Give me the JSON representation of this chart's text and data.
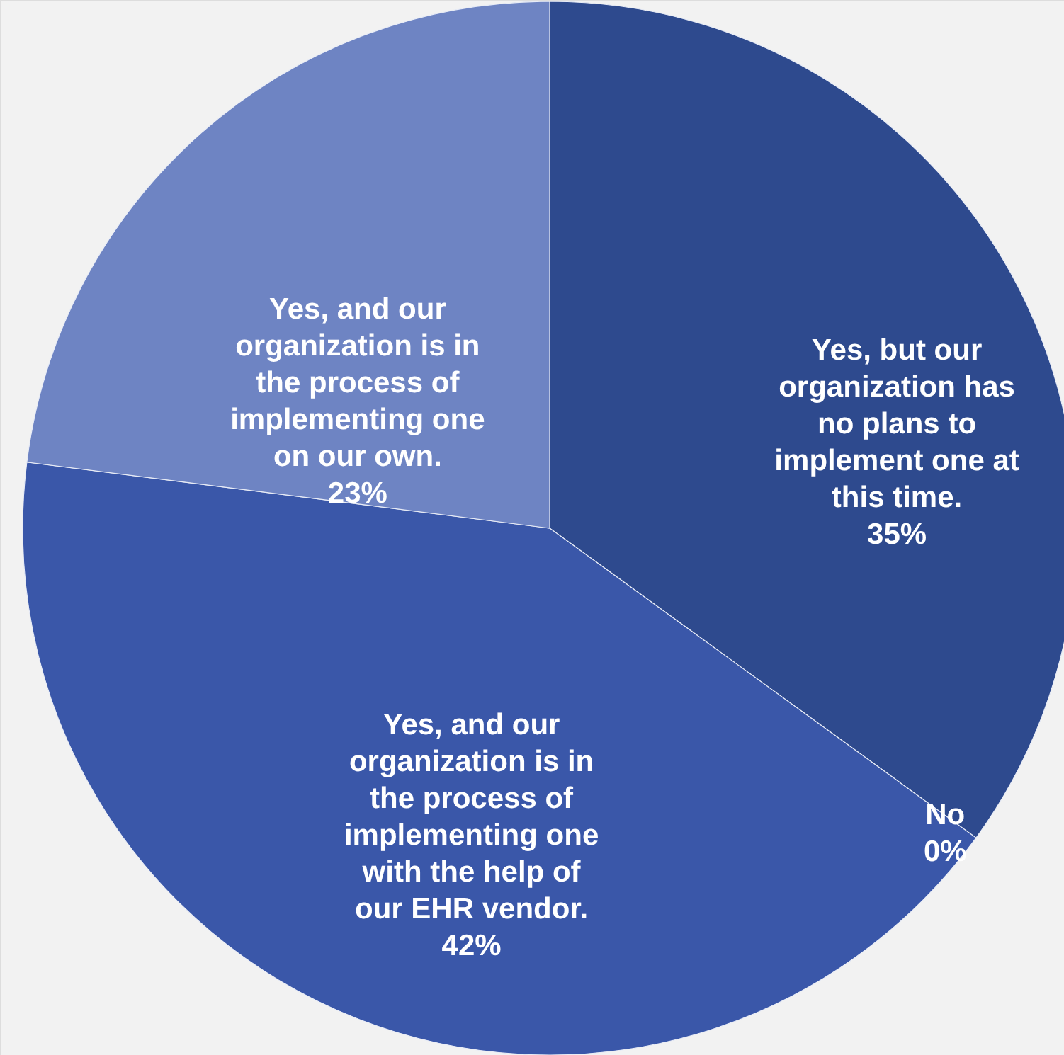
{
  "chart_data": {
    "type": "pie",
    "categories": [
      "Yes, but our organization has no plans to implement one at this time.",
      "No",
      "Yes, and our organization is in the process of implementing one with the help of our EHR vendor.",
      "Yes, and our organization is in the process of implementing one on our own."
    ],
    "values": [
      35,
      0,
      42,
      23
    ],
    "colors": [
      "#2e4a8e",
      "#2e4a8e",
      "#3a57a9",
      "#6e84c3"
    ],
    "value_labels": [
      "35%",
      "0%",
      "42%",
      "23%"
    ]
  }
}
